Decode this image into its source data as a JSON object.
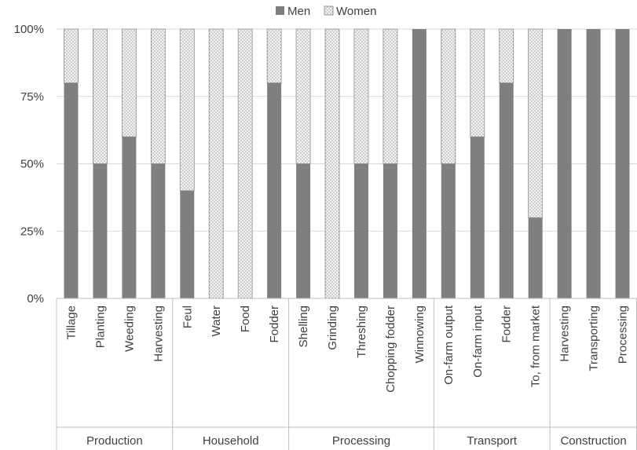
{
  "chart_data": {
    "type": "bar",
    "stacked": true,
    "normalized_percent": true,
    "legend": {
      "position": "top",
      "entries": [
        "Men",
        "Women"
      ]
    },
    "ylim": [
      0,
      100
    ],
    "yticks": [
      "0%",
      "25%",
      "50%",
      "75%",
      "100%"
    ],
    "ytick_values": [
      0,
      25,
      50,
      75,
      100
    ],
    "grid": true,
    "groups": [
      {
        "label": "Production",
        "categories": [
          "Tillage",
          "Planting",
          "Weeding",
          "Harvesting"
        ]
      },
      {
        "label": "Household",
        "categories": [
          "Feul",
          "Water",
          "Food",
          "Fodder"
        ]
      },
      {
        "label": "Processing",
        "categories": [
          "Shelling",
          "Grinding",
          "Threshing",
          "Chopping fodder",
          "Winnowing"
        ]
      },
      {
        "label": "Transport",
        "categories": [
          "On-farm output",
          "On-farm input",
          "Fodder",
          "To, from market"
        ]
      },
      {
        "label": "Construction",
        "categories": [
          "Harvesting",
          "Transporting",
          "Processing"
        ]
      }
    ],
    "categories": [
      "Tillage",
      "Planting",
      "Weeding",
      "Harvesting",
      "Feul",
      "Water",
      "Food",
      "Fodder",
      "Shelling",
      "Grinding",
      "Threshing",
      "Chopping fodder",
      "Winnowing",
      "On-farm output",
      "On-farm input",
      "Fodder",
      "To, from market",
      "Harvesting",
      "Transporting",
      "Processing"
    ],
    "series": [
      {
        "name": "Men",
        "color": "#7f7f7f",
        "pattern": "solid",
        "values": [
          80,
          50,
          60,
          50,
          40,
          0,
          0,
          80,
          50,
          0,
          50,
          50,
          100,
          50,
          60,
          80,
          30,
          100,
          100,
          100
        ]
      },
      {
        "name": "Women",
        "color": "#d9d9d9",
        "pattern": "dotted",
        "values": [
          20,
          50,
          40,
          50,
          60,
          100,
          100,
          20,
          50,
          100,
          50,
          50,
          0,
          50,
          40,
          20,
          70,
          0,
          0,
          0
        ]
      }
    ]
  }
}
